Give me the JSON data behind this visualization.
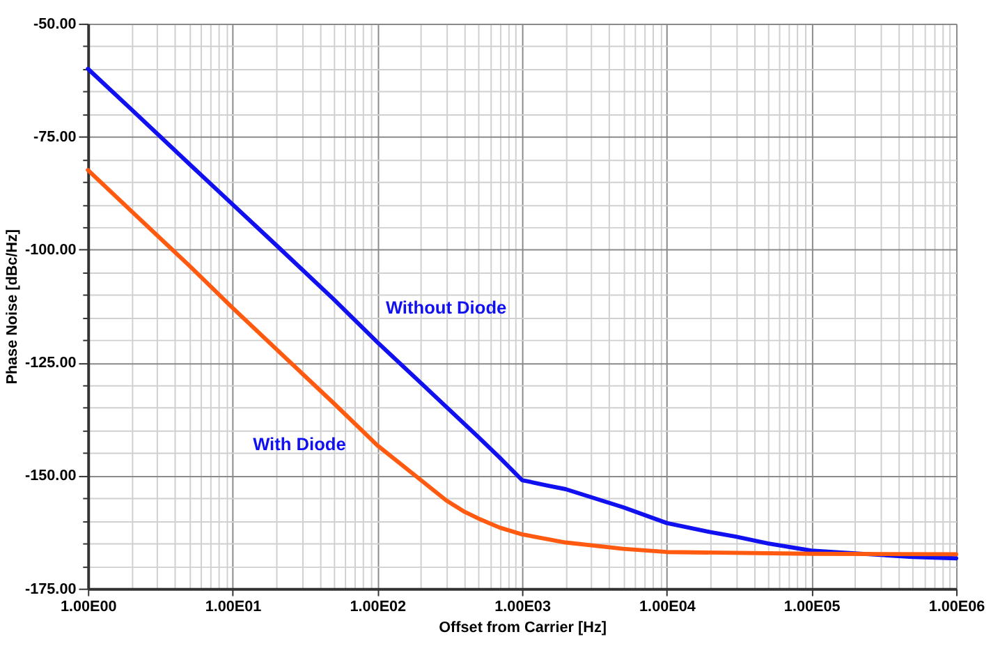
{
  "chart_data": {
    "type": "line",
    "xlabel": "Offset from Carrier [Hz]",
    "ylabel": "Phase Noise [dBc/Hz]",
    "log": "x",
    "grid": true,
    "legend": false,
    "marker": "none",
    "line_style": "solid",
    "xlim": [
      1,
      1000000
    ],
    "ylim": [
      -175,
      -50
    ],
    "xticks": [
      {
        "value": 1,
        "label": "1.00E00"
      },
      {
        "value": 2,
        "label": null
      },
      {
        "value": 3,
        "label": null
      },
      {
        "value": 4,
        "label": null
      },
      {
        "value": 5,
        "label": null
      },
      {
        "value": 6,
        "label": null
      },
      {
        "value": 7,
        "label": null
      },
      {
        "value": 8,
        "label": null
      },
      {
        "value": 9,
        "label": null
      },
      {
        "value": 10,
        "label": "1.00E01"
      },
      {
        "value": 20,
        "label": null
      },
      {
        "value": 30,
        "label": null
      },
      {
        "value": 40,
        "label": null
      },
      {
        "value": 50,
        "label": null
      },
      {
        "value": 60,
        "label": null
      },
      {
        "value": 70,
        "label": null
      },
      {
        "value": 80,
        "label": null
      },
      {
        "value": 90,
        "label": null
      },
      {
        "value": 100,
        "label": "1.00E02"
      },
      {
        "value": 200,
        "label": null
      },
      {
        "value": 300,
        "label": null
      },
      {
        "value": 400,
        "label": null
      },
      {
        "value": 500,
        "label": null
      },
      {
        "value": 600,
        "label": null
      },
      {
        "value": 700,
        "label": null
      },
      {
        "value": 800,
        "label": null
      },
      {
        "value": 900,
        "label": null
      },
      {
        "value": 1000,
        "label": "1.00E03"
      },
      {
        "value": 2000,
        "label": null
      },
      {
        "value": 3000,
        "label": null
      },
      {
        "value": 4000,
        "label": null
      },
      {
        "value": 5000,
        "label": null
      },
      {
        "value": 6000,
        "label": null
      },
      {
        "value": 7000,
        "label": null
      },
      {
        "value": 8000,
        "label": null
      },
      {
        "value": 9000,
        "label": null
      },
      {
        "value": 10000,
        "label": "1.00E04"
      },
      {
        "value": 20000,
        "label": null
      },
      {
        "value": 30000,
        "label": null
      },
      {
        "value": 40000,
        "label": null
      },
      {
        "value": 50000,
        "label": null
      },
      {
        "value": 60000,
        "label": null
      },
      {
        "value": 70000,
        "label": null
      },
      {
        "value": 80000,
        "label": null
      },
      {
        "value": 90000,
        "label": null
      },
      {
        "value": 100000,
        "label": "1.00E05"
      },
      {
        "value": 200000,
        "label": null
      },
      {
        "value": 300000,
        "label": null
      },
      {
        "value": 400000,
        "label": null
      },
      {
        "value": 500000,
        "label": null
      },
      {
        "value": 600000,
        "label": null
      },
      {
        "value": 700000,
        "label": null
      },
      {
        "value": 800000,
        "label": null
      },
      {
        "value": 900000,
        "label": null
      },
      {
        "value": 1000000,
        "label": "1.00E06"
      }
    ],
    "yticks": [
      {
        "value": -175,
        "label": "-175.00"
      },
      {
        "value": -170,
        "label": null
      },
      {
        "value": -165,
        "label": null
      },
      {
        "value": -160,
        "label": null
      },
      {
        "value": -155,
        "label": null
      },
      {
        "value": -150,
        "label": "-150.00"
      },
      {
        "value": -145,
        "label": null
      },
      {
        "value": -140,
        "label": null
      },
      {
        "value": -135,
        "label": null
      },
      {
        "value": -130,
        "label": null
      },
      {
        "value": -125,
        "label": "-125.00"
      },
      {
        "value": -120,
        "label": null
      },
      {
        "value": -115,
        "label": null
      },
      {
        "value": -110,
        "label": null
      },
      {
        "value": -105,
        "label": null
      },
      {
        "value": -100,
        "label": "-100.00"
      },
      {
        "value": -95,
        "label": null
      },
      {
        "value": -90,
        "label": null
      },
      {
        "value": -85,
        "label": null
      },
      {
        "value": -80,
        "label": null
      },
      {
        "value": -75,
        "label": "-75.00"
      },
      {
        "value": -70,
        "label": null
      },
      {
        "value": -65,
        "label": null
      },
      {
        "value": -60,
        "label": null
      },
      {
        "value": -55,
        "label": null
      },
      {
        "value": -50,
        "label": "-50.00"
      }
    ],
    "series": [
      {
        "color": "#1010f0",
        "x": [
          1,
          2,
          5,
          10,
          20,
          50,
          100,
          200,
          500,
          700,
          1000,
          1500,
          2000,
          5000,
          10000,
          20000,
          30000,
          50000,
          100000,
          200000,
          500000,
          1000000
        ],
        "values": [
          -60,
          -69,
          -81,
          -90,
          -99,
          -111,
          -120.5,
          -129.5,
          -141.5,
          -146,
          -151,
          -152.2,
          -153,
          -157,
          -160.5,
          -162.5,
          -163.5,
          -165,
          -166.6,
          -167.2,
          -168,
          -168.3
        ]
      },
      {
        "color": "#ff5a10",
        "x": [
          1,
          2,
          5,
          10,
          20,
          50,
          100,
          200,
          300,
          400,
          500,
          700,
          1000,
          2000,
          5000,
          10000,
          100000,
          1000000
        ],
        "values": [
          -82.4,
          -91.5,
          -103.5,
          -112.9,
          -122,
          -134,
          -143.3,
          -151,
          -155.5,
          -158,
          -159.5,
          -161.5,
          -163,
          -164.8,
          -166.2,
          -166.9,
          -167.3,
          -167.4
        ]
      }
    ],
    "annotations": [
      "Without Diode",
      "With Diode"
    ]
  }
}
